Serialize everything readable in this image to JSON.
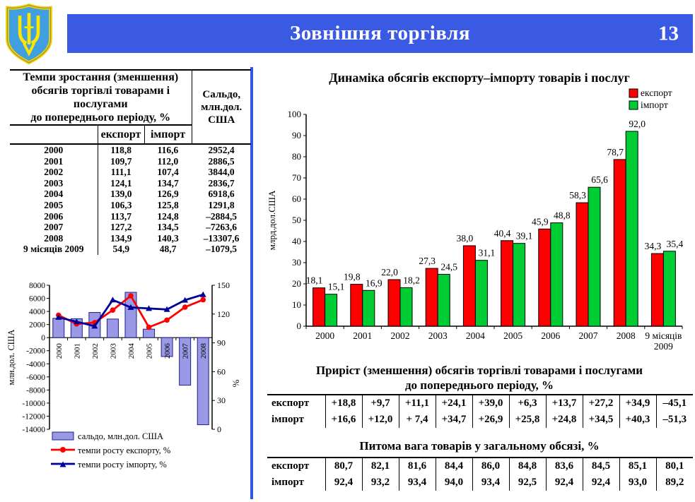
{
  "header": {
    "title": "Зовнішня торгівля",
    "page_number": "13"
  },
  "growth_table": {
    "title_lines": [
      "Темпи зростання (зменшення)",
      "обсягів торгівлі товарами і",
      "послугами",
      "до попереднього періоду, %"
    ],
    "saldo_header_lines": [
      "Сальдо,",
      "млн.дол.",
      "США"
    ],
    "subheaders": [
      "експорт",
      "імпорт"
    ],
    "rows": [
      {
        "period": "2000",
        "export": "118,8",
        "import": "116,6",
        "saldo": "2952,4"
      },
      {
        "period": "2001",
        "export": "109,7",
        "import": "112,0",
        "saldo": "2886,5"
      },
      {
        "period": "2002",
        "export": "111,1",
        "import": "107,4",
        "saldo": "3844,0"
      },
      {
        "period": "2003",
        "export": "124,1",
        "import": "134,7",
        "saldo": "2836,7"
      },
      {
        "period": "2004",
        "export": "139,0",
        "import": "126,9",
        "saldo": "6918,6"
      },
      {
        "period": "2005",
        "export": "106,3",
        "import": "125,8",
        "saldo": "1291,8"
      },
      {
        "period": "2006",
        "export": "113,7",
        "import": "124,8",
        "saldo": "–2884,5"
      },
      {
        "period": "2007",
        "export": "127,2",
        "import": "134,5",
        "saldo": "–7263,6"
      },
      {
        "period": "2008",
        "export": "134,9",
        "import": "140,3",
        "saldo": "–13307,6"
      },
      {
        "period": "9 місяців 2009",
        "export": "54,9",
        "import": "48,7",
        "saldo": "–1079,5"
      }
    ]
  },
  "chart_data": [
    {
      "id": "saldo_combo_chart",
      "type": "bar",
      "subtype": "combo-bar-line",
      "categories": [
        "2000",
        "2001",
        "2002",
        "2003",
        "2004",
        "2005",
        "2006",
        "2007",
        "2008"
      ],
      "series": [
        {
          "name": "сальдо, млн.дол. США",
          "kind": "bar",
          "axis": "left",
          "color": "#9999E6",
          "border": "#1F1F8F",
          "values": [
            2952.4,
            2886.5,
            3844.0,
            2836.7,
            6918.6,
            1291.8,
            -2884.5,
            -7263.6,
            -13307.6
          ]
        },
        {
          "name": "темпи росту експорту, %",
          "kind": "line",
          "axis": "right",
          "color": "#FF0000",
          "marker": "circle",
          "values": [
            118.8,
            109.7,
            111.1,
            124.1,
            139.0,
            106.3,
            113.7,
            127.2,
            134.9
          ]
        },
        {
          "name": "темпи росту імпорту, %",
          "kind": "line",
          "axis": "right",
          "color": "#000099",
          "marker": "triangle",
          "values": [
            116.6,
            112.0,
            107.4,
            134.7,
            126.9,
            125.8,
            124.8,
            134.5,
            140.3
          ]
        }
      ],
      "left_axis": {
        "label": "млн.дол. США",
        "min": -14000,
        "max": 8000,
        "step": 2000
      },
      "right_axis": {
        "label": "%",
        "min": 0,
        "max": 150,
        "step": 30
      },
      "legend_position": "bottom",
      "grid": false
    },
    {
      "id": "export_import_chart",
      "type": "bar",
      "title": "Динаміка обсягів експорту–імпорту товарів і послуг",
      "categories": [
        "2000",
        "2001",
        "2002",
        "2003",
        "2004",
        "2005",
        "2006",
        "2007",
        "2008",
        "9 місяців\n2009"
      ],
      "series": [
        {
          "name": "експорт",
          "color": "#FF0000",
          "values": [
            18.1,
            19.8,
            22.0,
            27.3,
            38.0,
            40.4,
            45.9,
            58.3,
            78.7,
            34.3
          ]
        },
        {
          "name": "імпорт",
          "color": "#00CC33",
          "values": [
            15.1,
            16.9,
            18.2,
            24.5,
            31.1,
            39.1,
            48.8,
            65.6,
            92.0,
            35.4
          ]
        }
      ],
      "ylabel": "млрд.дол.США",
      "ylim": [
        0,
        100
      ],
      "ystep": 10,
      "legend_position": "top-right",
      "data_labels": true,
      "grid": false
    },
    {
      "id": "growth_rate_table",
      "type": "table",
      "title_lines": [
        "Приріст (зменшення) обсягів торгівлі товарами і послугами",
        "до попереднього періоду, %"
      ],
      "rows": [
        {
          "label": "експорт",
          "values": [
            "+18,8",
            "+9,7",
            "+11,1",
            "+24,1",
            "+39,0",
            "+6,3",
            "+13,7",
            "+27,2",
            "+34,9",
            "–45,1"
          ]
        },
        {
          "label": "імпорт",
          "values": [
            "+16,6",
            "+12,0",
            "+ 7,4",
            "+34,7",
            "+26,9",
            "+25,8",
            "+24,8",
            "+34,5",
            "+40,3",
            "–51,3"
          ]
        }
      ]
    },
    {
      "id": "goods_share_table",
      "type": "table",
      "title_lines": [
        "Питома вага товарів у загальному обсязі, %"
      ],
      "rows": [
        {
          "label": "експорт",
          "values": [
            "80,7",
            "82,1",
            "81,6",
            "84,4",
            "86,0",
            "84,8",
            "83,6",
            "84,5",
            "85,1",
            "80,1"
          ]
        },
        {
          "label": "імпорт",
          "values": [
            "92,4",
            "93,2",
            "93,4",
            "94,0",
            "93,4",
            "92,5",
            "92,4",
            "92,4",
            "93,0",
            "89,2"
          ]
        }
      ]
    }
  ],
  "colors": {
    "header_blue": "#3B5AE3",
    "divider_blue": "#3355E6",
    "export_red": "#FF0000",
    "import_green": "#00CC33",
    "saldo_bar": "#9999E6",
    "import_line_navy": "#000099"
  }
}
